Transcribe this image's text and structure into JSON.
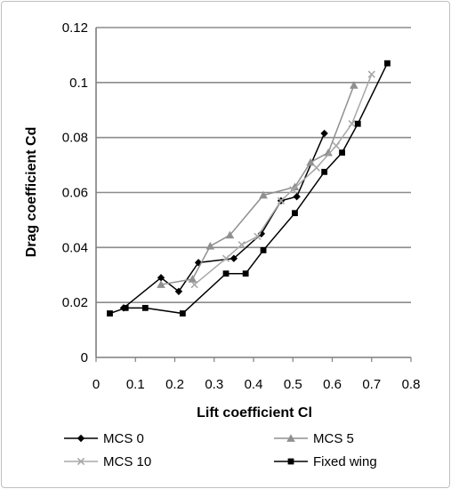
{
  "chart_data": {
    "type": "line",
    "xlabel": "Lift coefficient Cl",
    "ylabel": "Drag coefficient Cd",
    "xlim": [
      0,
      0.8
    ],
    "ylim": [
      0,
      0.12
    ],
    "x_ticks": [
      "0",
      "0.1",
      "0.2",
      "0.3",
      "0.4",
      "0.5",
      "0.6",
      "0.7",
      "0.8"
    ],
    "y_ticks": [
      "0",
      "0.02",
      "0.04",
      "0.06",
      "0.08",
      "0.1",
      "0.12"
    ],
    "grid": "horizontal",
    "legend_position": "bottom",
    "series": [
      {
        "name": "MCS 0",
        "color": "#000000",
        "marker": "diamond",
        "points": [
          [
            0.07,
            0.018
          ],
          [
            0.165,
            0.029
          ],
          [
            0.21,
            0.024
          ],
          [
            0.26,
            0.0345
          ],
          [
            0.35,
            0.036
          ],
          [
            0.42,
            0.045
          ],
          [
            0.47,
            0.057
          ],
          [
            0.51,
            0.0585
          ],
          [
            0.58,
            0.0815
          ]
        ]
      },
      {
        "name": "MCS 5",
        "color": "#909090",
        "marker": "triangle",
        "points": [
          [
            0.165,
            0.0265
          ],
          [
            0.245,
            0.0285
          ],
          [
            0.29,
            0.0405
          ],
          [
            0.34,
            0.0445
          ],
          [
            0.425,
            0.059
          ],
          [
            0.505,
            0.062
          ],
          [
            0.545,
            0.071
          ],
          [
            0.59,
            0.0745
          ],
          [
            0.655,
            0.099
          ]
        ]
      },
      {
        "name": "MCS 10",
        "color": "#a8a8a8",
        "marker": "x",
        "points": [
          [
            0.25,
            0.0265
          ],
          [
            0.33,
            0.036
          ],
          [
            0.37,
            0.041
          ],
          [
            0.41,
            0.044
          ],
          [
            0.47,
            0.057
          ],
          [
            0.5,
            0.061
          ],
          [
            0.56,
            0.069
          ],
          [
            0.61,
            0.077
          ],
          [
            0.65,
            0.085
          ],
          [
            0.7,
            0.103
          ]
        ]
      },
      {
        "name": "Fixed wing",
        "color": "#000000",
        "marker": "square",
        "points": [
          [
            0.035,
            0.016
          ],
          [
            0.075,
            0.018
          ],
          [
            0.125,
            0.018
          ],
          [
            0.22,
            0.016
          ],
          [
            0.33,
            0.0305
          ],
          [
            0.38,
            0.0305
          ],
          [
            0.425,
            0.039
          ],
          [
            0.505,
            0.0525
          ],
          [
            0.58,
            0.0675
          ],
          [
            0.625,
            0.0745
          ],
          [
            0.665,
            0.085
          ],
          [
            0.74,
            0.107
          ]
        ]
      }
    ]
  }
}
